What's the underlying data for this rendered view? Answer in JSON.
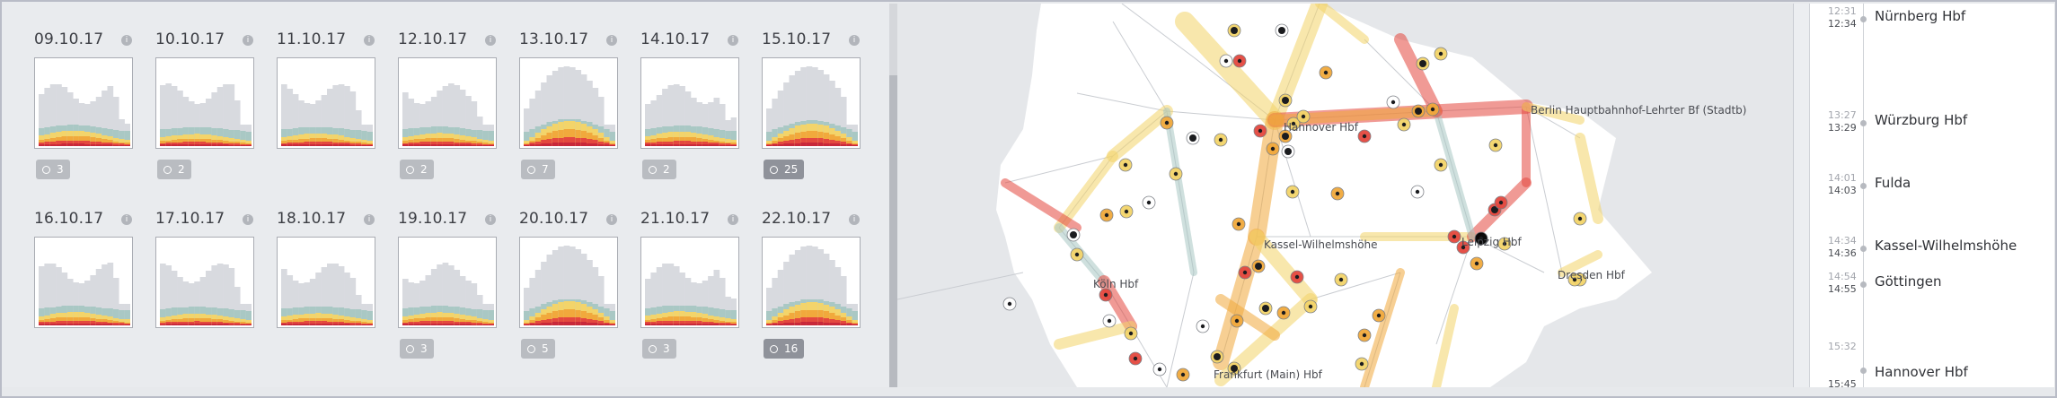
{
  "calendar": {
    "days": [
      {
        "date": "09.10.17",
        "badge": "3",
        "profile": "weekday",
        "intensity": 0.45,
        "badge_style": "light"
      },
      {
        "date": "10.10.17",
        "badge": "2",
        "profile": "weekday",
        "intensity": 0.3,
        "badge_style": "light"
      },
      {
        "date": "11.10.17",
        "badge": "",
        "profile": "weekday",
        "intensity": 0.32
      },
      {
        "date": "12.10.17",
        "badge": "2",
        "profile": "weekday",
        "intensity": 0.34,
        "badge_style": "light"
      },
      {
        "date": "13.10.17",
        "badge": "7",
        "profile": "peak",
        "intensity": 0.85,
        "badge_style": "light"
      },
      {
        "date": "14.10.17",
        "badge": "2",
        "profile": "weekday",
        "intensity": 0.4,
        "badge_style": "light"
      },
      {
        "date": "15.10.17",
        "badge": "25",
        "profile": "peak",
        "intensity": 0.75,
        "badge_style": "dark"
      },
      {
        "date": "16.10.17",
        "badge": "",
        "profile": "weekday",
        "intensity": 0.35
      },
      {
        "date": "17.10.17",
        "badge": "",
        "profile": "weekday",
        "intensity": 0.28
      },
      {
        "date": "18.10.17",
        "badge": "",
        "profile": "weekday",
        "intensity": 0.3
      },
      {
        "date": "19.10.17",
        "badge": "3",
        "profile": "weekday",
        "intensity": 0.34,
        "badge_style": "light"
      },
      {
        "date": "20.10.17",
        "badge": "5",
        "profile": "peak",
        "intensity": 0.8,
        "badge_style": "light"
      },
      {
        "date": "21.10.17",
        "badge": "3",
        "profile": "weekday",
        "intensity": 0.38,
        "badge_style": "light"
      },
      {
        "date": "22.10.17",
        "badge": "16",
        "profile": "peak",
        "intensity": 0.78,
        "badge_style": "dark"
      }
    ]
  },
  "map": {
    "cities": [
      {
        "id": "berlin",
        "label": "Berlin Hauptbahnhof-Lehrter Bf (Stadtb)"
      },
      {
        "id": "hannover",
        "label": "Hannover Hbf"
      },
      {
        "id": "kassel",
        "label": "Kassel-Wilhelmshöhe"
      },
      {
        "id": "leipzig",
        "label": "Leipzig Hbf"
      },
      {
        "id": "dresden",
        "label": "Dresden Hbf"
      },
      {
        "id": "koeln",
        "label": "Köln Hbf"
      },
      {
        "id": "frankfurt",
        "label": "Frankfurt (Main) Hbf"
      }
    ]
  },
  "timeline": {
    "stops": [
      {
        "arr": "12:31",
        "dep": "12:34",
        "name": "Nürnberg Hbf"
      },
      {
        "arr": "13:27",
        "dep": "13:29",
        "name": "Würzburg Hbf"
      },
      {
        "arr": "14:01",
        "dep": "14:03",
        "name": "Fulda"
      },
      {
        "arr": "14:34",
        "dep": "14:36",
        "name": "Kassel-Wilhelmshöhe"
      },
      {
        "arr": "14:54",
        "dep": "14:55",
        "name": "Göttingen"
      },
      {
        "arr": "15:32",
        "dep": "15:45",
        "name": "Hannover Hbf"
      }
    ]
  },
  "colors": {
    "grey": "#d8dadf",
    "teal": "#a9c8c4",
    "yellow": "#f3d46a",
    "orange": "#f1a93c",
    "red": "#e4483f",
    "deep_red": "#c8283a"
  }
}
